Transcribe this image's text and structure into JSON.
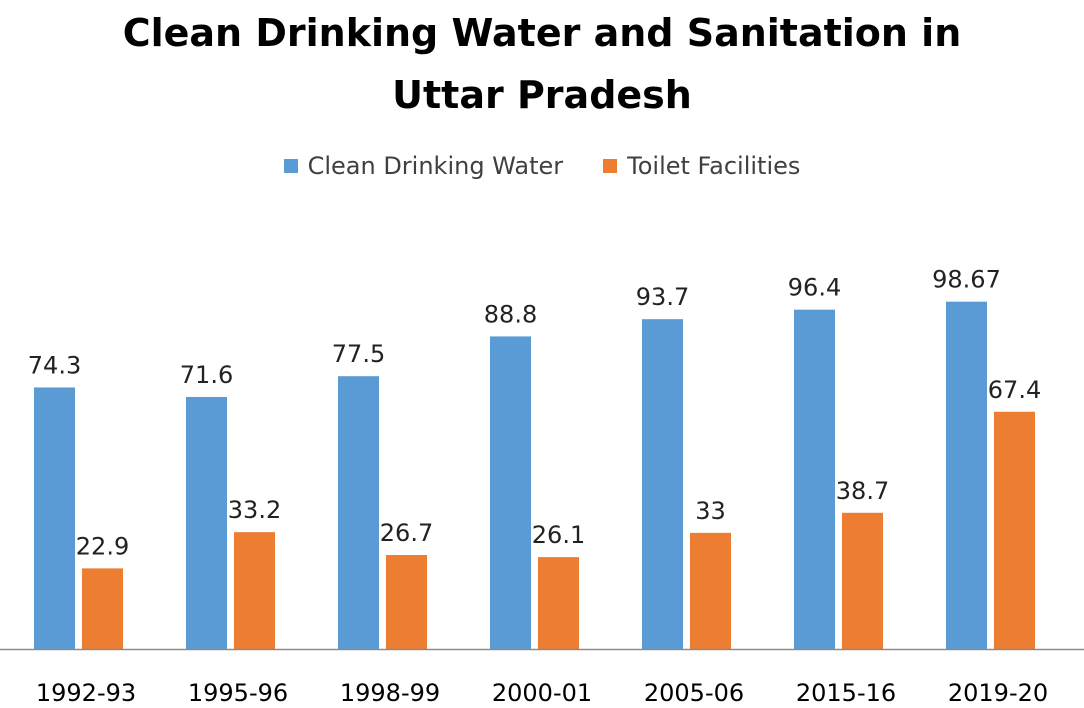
{
  "chart_data": {
    "type": "bar",
    "title": "Clean Drinking Water and Sanitation in Uttar Pradesh",
    "title_lines": [
      "Clean Drinking Water and Sanitation in",
      "Uttar Pradesh"
    ],
    "categories": [
      "1992-93",
      "1995-96",
      "1998-99",
      "2000-01",
      "2005-06",
      "2015-16",
      "2019-20"
    ],
    "series": [
      {
        "name": "Clean Drinking Water",
        "color": "#5B9BD5",
        "values": [
          74.3,
          71.6,
          77.5,
          88.8,
          93.7,
          96.4,
          98.67
        ]
      },
      {
        "name": "Toilet Facilities",
        "color": "#ED7D31",
        "values": [
          22.9,
          33.2,
          26.7,
          26.1,
          33,
          38.7,
          67.4
        ]
      }
    ],
    "xlabel": "",
    "ylabel": "",
    "ylim": [
      0,
      100
    ],
    "legend_position": "top-center",
    "grid": false,
    "data_labels": true
  }
}
